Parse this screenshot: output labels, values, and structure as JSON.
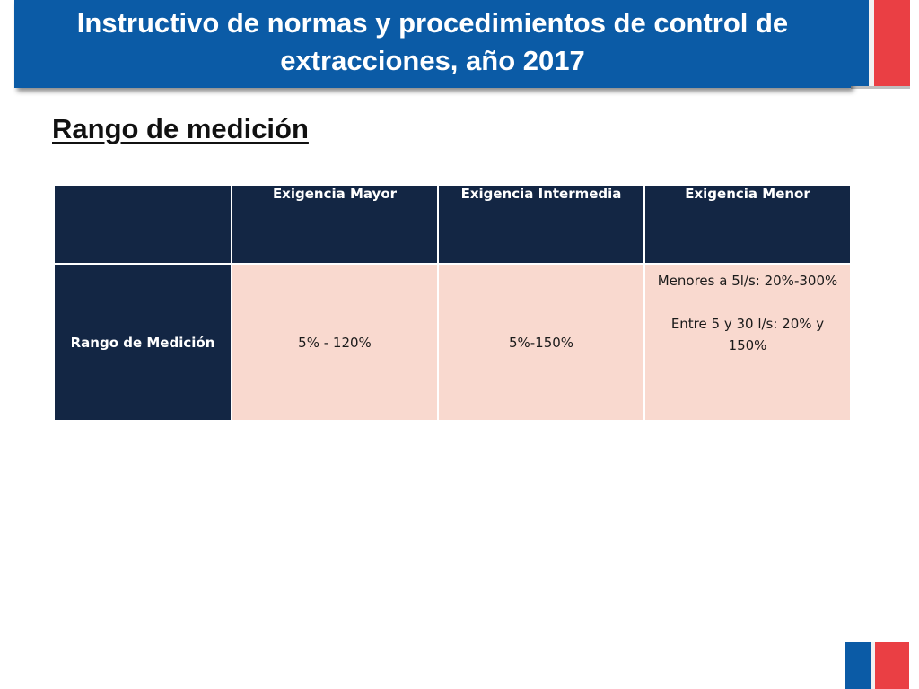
{
  "slide": {
    "title": "Instructivo de  normas y procedimientos de control de extracciones, año 2017",
    "section_heading": "Rango de medición"
  },
  "table": {
    "columns": [
      "",
      "Exigencia Mayor",
      "Exigencia Intermedia",
      "Exigencia Menor"
    ],
    "rows": [
      {
        "label": "Rango de Medición",
        "mayor": "5% - 120%",
        "intermedia": "5%-150%",
        "menor": [
          "Menores a 5l/s: 20%-300%",
          "Entre 5 y 30 l/s: 20% y 150%"
        ]
      }
    ]
  },
  "colors": {
    "title_bar": "#0b5ba6",
    "header_fill": "#132644",
    "cell_fill": "#f9d9cf",
    "flag_red": "#ea3f44"
  }
}
